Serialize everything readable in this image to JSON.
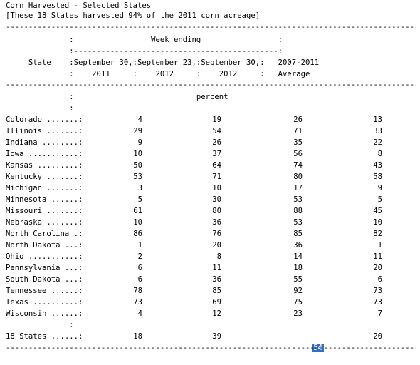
{
  "title": "Corn Harvested - Selected States",
  "subtitle": "[These 18 States harvested 94% of the 2011 corn acreage]",
  "separator": "------------------------------------------------------------------------------------------------------------",
  "header": {
    "row1": "              :                 Week ending                 :",
    "row2": "              :---------------------------------------------:",
    "row3": "     State    :September 30,:September 23,:September 30,:   2007-2011",
    "row4": "              :    2011     :    2012     :    2012     :   Average"
  },
  "unit_row": "              :                           percent",
  "colon_row": "              :",
  "rows": [
    {
      "state": "Colorado .......:",
      "v2011": "4",
      "sep23_2012": "19",
      "sep30_2012": "26",
      "avg": "13"
    },
    {
      "state": "Illinois .......:",
      "v2011": "29",
      "sep23_2012": "54",
      "sep30_2012": "71",
      "avg": "33"
    },
    {
      "state": "Indiana ........:",
      "v2011": "9",
      "sep23_2012": "26",
      "sep30_2012": "35",
      "avg": "22"
    },
    {
      "state": "Iowa ...........:",
      "v2011": "10",
      "sep23_2012": "37",
      "sep30_2012": "56",
      "avg": "8"
    },
    {
      "state": "Kansas .........:",
      "v2011": "50",
      "sep23_2012": "64",
      "sep30_2012": "74",
      "avg": "43"
    },
    {
      "state": "Kentucky .......:",
      "v2011": "53",
      "sep23_2012": "71",
      "sep30_2012": "80",
      "avg": "58"
    },
    {
      "state": "Michigan .......:",
      "v2011": "3",
      "sep23_2012": "10",
      "sep30_2012": "17",
      "avg": "9"
    },
    {
      "state": "Minnesota ......:",
      "v2011": "5",
      "sep23_2012": "30",
      "sep30_2012": "53",
      "avg": "5"
    },
    {
      "state": "Missouri .......:",
      "v2011": "61",
      "sep23_2012": "80",
      "sep30_2012": "88",
      "avg": "45"
    },
    {
      "state": "Nebraska .......:",
      "v2011": "10",
      "sep23_2012": "36",
      "sep30_2012": "53",
      "avg": "10"
    },
    {
      "state": "North Carolina .:",
      "v2011": "86",
      "sep23_2012": "76",
      "sep30_2012": "85",
      "avg": "82"
    },
    {
      "state": "North Dakota ...:",
      "v2011": "1",
      "sep23_2012": "20",
      "sep30_2012": "36",
      "avg": "1"
    },
    {
      "state": "Ohio ...........:",
      "v2011": "2",
      "sep23_2012": "8",
      "sep30_2012": "14",
      "avg": "11"
    },
    {
      "state": "Pennsylvania ...:",
      "v2011": "6",
      "sep23_2012": "11",
      "sep30_2012": "18",
      "avg": "20"
    },
    {
      "state": "South Dakota ...:",
      "v2011": "6",
      "sep23_2012": "36",
      "sep30_2012": "55",
      "avg": "6"
    },
    {
      "state": "Tennessee ......:",
      "v2011": "78",
      "sep23_2012": "85",
      "sep30_2012": "92",
      "avg": "73"
    },
    {
      "state": "Texas ..........:",
      "v2011": "73",
      "sep23_2012": "69",
      "sep30_2012": "75",
      "avg": "73"
    },
    {
      "state": "Wisconsin ......:",
      "v2011": "4",
      "sep23_2012": "12",
      "sep30_2012": "23",
      "avg": "7"
    }
  ],
  "total": {
    "state": "18 States ......:",
    "v2011": "18",
    "sep23_2012": "39",
    "sep30_2012": "54",
    "avg": "20"
  },
  "colors": {
    "highlight": "#2f6fc8",
    "text": "#000000",
    "background": "#ffffff"
  }
}
